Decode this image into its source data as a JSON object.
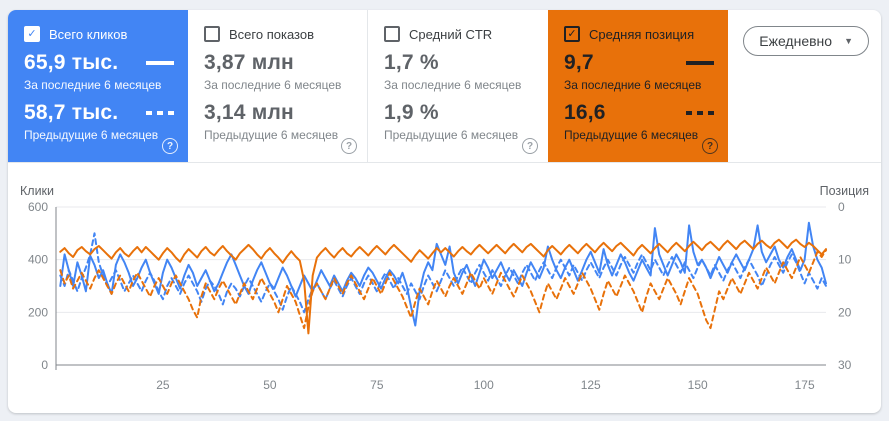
{
  "cards": [
    {
      "label": "Всего кликов",
      "checked": true,
      "value_current": "65,9 тыс.",
      "period_current": "За последние 6 месяцев",
      "value_previous": "58,7 тыс.",
      "period_previous": "Предыдущие 6 месяцев",
      "bg_color": "#4285f4"
    },
    {
      "label": "Всего показов",
      "checked": false,
      "value_current": "3,87 млн",
      "period_current": "За последние 6 месяцев",
      "value_previous": "3,14 млн",
      "period_previous": "Предыдущие 6 месяцев",
      "bg_color": "#ffffff"
    },
    {
      "label": "Средний CTR",
      "checked": false,
      "value_current": "1,7 %",
      "period_current": "За последние 6 месяцев",
      "value_previous": "1,9 %",
      "period_previous": "Предыдущие 6 месяцев",
      "bg_color": "#ffffff"
    },
    {
      "label": "Средняя позиция",
      "checked": true,
      "value_current": "9,7",
      "period_current": "За последние 6 месяцев",
      "value_previous": "16,6",
      "period_previous": "Предыдущие 6 месяцев",
      "bg_color": "#e8710a"
    }
  ],
  "controls": {
    "granularity_label": "Ежедневно",
    "chevron_icon": "▼",
    "help_icon": "?",
    "checkmark_icon": "✓"
  },
  "colors": {
    "clicks_blue": "#4285f4",
    "position_orange": "#e8710a",
    "grid_light": "#e8eaed",
    "axis_gray": "#80868b",
    "page_bg": "#edf0f5",
    "panel_bg": "#ffffff"
  },
  "chart_data": {
    "type": "line",
    "title": "",
    "xlabel": "",
    "grid": true,
    "x_axis": {
      "min": 0,
      "max": 180,
      "ticks": [
        25,
        50,
        75,
        100,
        125,
        150,
        175
      ]
    },
    "y_axis_left": {
      "label": "Клики",
      "min": 0,
      "max": 600,
      "ticks": [
        0,
        200,
        400,
        600
      ]
    },
    "y_axis_right": {
      "label": "Позиция",
      "min": 0,
      "max": 30,
      "ticks": [
        0,
        10,
        20,
        30
      ],
      "inverted": true
    },
    "series": [
      {
        "name": "Клики — за последние 6 месяцев",
        "axis": "left",
        "color": "#4285f4",
        "style": "solid",
        "values": [
          300,
          420,
          360,
          300,
          390,
          340,
          280,
          415,
          380,
          330,
          360,
          310,
          270,
          380,
          420,
          390,
          350,
          300,
          330,
          370,
          400,
          350,
          310,
          270,
          350,
          400,
          370,
          330,
          290,
          340,
          380,
          350,
          300,
          330,
          360,
          320,
          280,
          310,
          350,
          390,
          420,
          380,
          340,
          300,
          270,
          320,
          360,
          390,
          350,
          310,
          290,
          330,
          370,
          340,
          300,
          260,
          300,
          340,
          310,
          280,
          320,
          360,
          330,
          300,
          340,
          310,
          280,
          320,
          350,
          330,
          300,
          340,
          370,
          350,
          320,
          290,
          330,
          360,
          340,
          310,
          350,
          300,
          220,
          150,
          280,
          350,
          390,
          360,
          460,
          420,
          380,
          450,
          350,
          310,
          350,
          380,
          340,
          300,
          350,
          400,
          370,
          330,
          360,
          390,
          350,
          320,
          360,
          330,
          300,
          350,
          390,
          360,
          330,
          370,
          450,
          400,
          360,
          330,
          370,
          400,
          360,
          320,
          360,
          400,
          430,
          390,
          350,
          440,
          380,
          340,
          380,
          420,
          390,
          350,
          320,
          360,
          400,
          370,
          340,
          520,
          420,
          380,
          340,
          380,
          420,
          390,
          350,
          530,
          430,
          380,
          400,
          370,
          330,
          370,
          410,
          380,
          350,
          390,
          420,
          390,
          360,
          400,
          440,
          530,
          430,
          390,
          420,
          450,
          400,
          370,
          410,
          440,
          400,
          360,
          400,
          540,
          450,
          400,
          370,
          310
        ]
      },
      {
        "name": "Клики — предыдущие 6 месяцев",
        "axis": "left",
        "color": "#4285f4",
        "style": "dashed",
        "values": [
          340,
          300,
          360,
          320,
          280,
          330,
          370,
          420,
          500,
          390,
          340,
          300,
          330,
          360,
          320,
          280,
          310,
          340,
          310,
          280,
          320,
          350,
          320,
          280,
          250,
          300,
          330,
          300,
          270,
          310,
          340,
          310,
          280,
          240,
          290,
          320,
          300,
          270,
          230,
          280,
          310,
          290,
          260,
          300,
          330,
          300,
          270,
          240,
          280,
          310,
          280,
          250,
          210,
          260,
          300,
          270,
          240,
          200,
          250,
          290,
          310,
          280,
          250,
          290,
          320,
          290,
          260,
          300,
          330,
          300,
          270,
          310,
          340,
          310,
          280,
          320,
          350,
          320,
          290,
          330,
          300,
          270,
          310,
          280,
          250,
          300,
          340,
          310,
          280,
          320,
          360,
          330,
          300,
          340,
          370,
          340,
          310,
          350,
          380,
          350,
          320,
          360,
          330,
          300,
          340,
          370,
          340,
          310,
          350,
          380,
          350,
          320,
          360,
          390,
          360,
          330,
          370,
          400,
          370,
          340,
          380,
          350,
          320,
          360,
          390,
          360,
          330,
          370,
          400,
          370,
          340,
          380,
          410,
          380,
          350,
          390,
          420,
          390,
          360,
          400,
          370,
          340,
          380,
          410,
          380,
          350,
          390,
          360,
          330,
          370,
          400,
          370,
          340,
          380,
          350,
          320,
          360,
          390,
          360,
          330,
          370,
          400,
          370,
          340,
          300,
          340,
          380,
          410,
          380,
          350,
          390,
          420,
          390,
          350,
          310,
          350,
          320,
          290,
          330,
          300
        ]
      },
      {
        "name": "Средняя позиция — за последние 6 месяцев",
        "axis": "right",
        "color": "#e8710a",
        "style": "solid",
        "values": [
          8.5,
          7.8,
          8.8,
          9.5,
          8.2,
          7.6,
          8.4,
          9.0,
          8.0,
          7.4,
          8.2,
          9.0,
          9.8,
          8.6,
          7.8,
          8.8,
          9.4,
          8.4,
          7.6,
          8.6,
          7.6,
          8.4,
          9.2,
          10.0,
          8.8,
          7.8,
          8.6,
          9.6,
          10.4,
          9.0,
          8.0,
          8.8,
          9.6,
          8.4,
          7.6,
          8.6,
          9.2,
          8.2,
          7.4,
          8.4,
          9.2,
          10.0,
          8.8,
          8.0,
          7.2,
          8.0,
          9.0,
          9.8,
          8.6,
          7.8,
          8.8,
          9.6,
          10.6,
          9.4,
          8.4,
          9.4,
          10.2,
          14.0,
          24.0,
          13.0,
          9.6,
          8.6,
          7.8,
          8.8,
          9.6,
          8.6,
          7.8,
          8.8,
          9.4,
          8.4,
          7.6,
          8.4,
          9.2,
          8.2,
          7.4,
          8.2,
          9.0,
          8.0,
          7.2,
          8.0,
          8.8,
          9.6,
          10.4,
          9.2,
          8.2,
          9.0,
          9.8,
          8.8,
          7.8,
          8.6,
          7.8,
          8.6,
          9.4,
          8.4,
          7.6,
          8.4,
          9.0,
          8.0,
          7.2,
          8.0,
          8.8,
          8.0,
          7.2,
          8.0,
          8.8,
          7.8,
          7.0,
          7.8,
          8.6,
          7.6,
          7.0,
          7.8,
          8.6,
          9.4,
          8.2,
          7.4,
          8.2,
          9.0,
          8.0,
          7.2,
          8.0,
          8.8,
          7.8,
          7.0,
          7.8,
          8.6,
          7.6,
          6.8,
          7.6,
          8.4,
          7.4,
          6.8,
          7.6,
          8.4,
          9.2,
          8.0,
          7.2,
          8.0,
          8.8,
          7.8,
          7.0,
          7.8,
          8.6,
          7.6,
          6.8,
          7.6,
          8.4,
          7.4,
          6.6,
          7.4,
          8.2,
          7.2,
          6.6,
          7.4,
          8.2,
          7.2,
          6.4,
          7.2,
          8.0,
          7.0,
          6.4,
          7.2,
          8.0,
          7.0,
          6.4,
          7.2,
          7.8,
          6.8,
          6.2,
          7.0,
          7.8,
          6.8,
          6.2,
          7.0,
          7.6,
          6.8,
          7.4,
          8.2,
          9.0,
          8.0
        ]
      },
      {
        "name": "Средняя позиция — предыдущие 6 месяцев",
        "axis": "right",
        "color": "#e8710a",
        "style": "dashed",
        "values": [
          12.0,
          14.5,
          13.0,
          15.5,
          14.0,
          12.5,
          14.0,
          15.5,
          13.5,
          12.0,
          13.5,
          15.0,
          16.5,
          14.5,
          13.0,
          14.5,
          16.0,
          14.0,
          12.5,
          14.0,
          15.5,
          17.0,
          15.0,
          13.5,
          15.0,
          16.5,
          14.5,
          13.0,
          14.5,
          16.0,
          17.5,
          19.5,
          21.0,
          17.0,
          14.5,
          16.0,
          17.5,
          15.5,
          14.0,
          15.5,
          17.0,
          18.5,
          16.5,
          14.5,
          16.0,
          17.5,
          15.5,
          13.5,
          15.0,
          16.5,
          18.0,
          20.0,
          17.5,
          15.0,
          16.5,
          18.0,
          20.5,
          23.0,
          19.0,
          16.0,
          14.5,
          16.0,
          17.5,
          15.5,
          13.5,
          15.0,
          16.5,
          14.5,
          13.0,
          14.5,
          16.0,
          17.5,
          15.5,
          13.5,
          15.0,
          16.5,
          14.5,
          12.5,
          14.0,
          15.5,
          17.0,
          19.0,
          21.0,
          18.0,
          15.5,
          17.0,
          18.5,
          16.0,
          14.0,
          15.5,
          17.0,
          15.0,
          13.5,
          15.0,
          16.5,
          14.5,
          12.5,
          14.0,
          15.5,
          13.5,
          15.0,
          16.5,
          14.5,
          12.5,
          14.0,
          15.5,
          17.0,
          15.0,
          13.0,
          14.5,
          16.0,
          18.0,
          20.0,
          17.0,
          14.5,
          16.0,
          17.5,
          15.5,
          13.5,
          15.0,
          16.5,
          14.5,
          12.5,
          14.0,
          15.5,
          17.5,
          19.5,
          16.5,
          14.0,
          15.5,
          17.0,
          15.0,
          13.0,
          14.5,
          16.0,
          18.0,
          20.0,
          17.0,
          14.5,
          16.0,
          17.5,
          15.5,
          13.5,
          15.0,
          16.5,
          18.5,
          16.0,
          13.5,
          15.0,
          16.5,
          19.0,
          21.5,
          23.0,
          19.5,
          16.0,
          17.5,
          15.5,
          13.5,
          15.0,
          16.5,
          14.5,
          12.5,
          14.0,
          15.5,
          13.5,
          11.5,
          13.0,
          14.5,
          12.5,
          10.5,
          12.0,
          13.5,
          11.5,
          9.5,
          11.0,
          12.5,
          10.5,
          8.5,
          9.5,
          8.2
        ]
      }
    ]
  }
}
